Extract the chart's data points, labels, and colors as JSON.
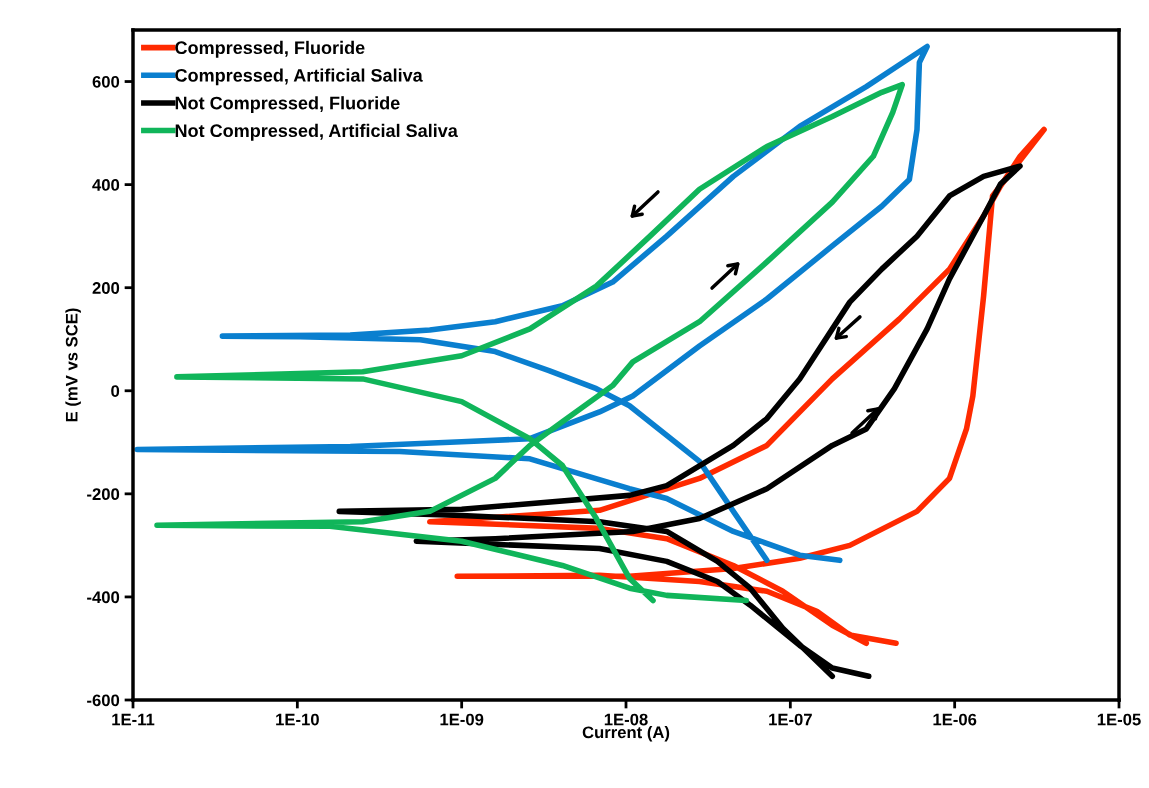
{
  "chart_data": {
    "type": "line",
    "xlabel": "Current (A)",
    "ylabel": "E (mV vs SCE)",
    "log": "x",
    "grid": false,
    "legend": "top left",
    "marker": "none",
    "line_style": "solid",
    "xlim": [
      1e-11,
      1e-05
    ],
    "ylim": [
      -600,
      700
    ],
    "xticks": [
      {
        "value": 1e-11,
        "label": "1E-11"
      },
      {
        "value": 1e-10,
        "label": "1E-10"
      },
      {
        "value": 1e-09,
        "label": "1E-09"
      },
      {
        "value": 1e-08,
        "label": "1E-08"
      },
      {
        "value": 1e-07,
        "label": "1E-07"
      },
      {
        "value": 1e-06,
        "label": "1E-06"
      },
      {
        "value": 1e-05,
        "label": "1E-05"
      }
    ],
    "yticks": [
      -600,
      -400,
      -200,
      0,
      200,
      400,
      600
    ],
    "series": [
      {
        "name": "Compressed, Fluoride",
        "color": "#ff2a00",
        "x": [
          2.9e-07,
          1.8e-07,
          9e-08,
          4.5e-08,
          1.77e-08,
          6.9e-09,
          6.4e-10,
          6.9e-09,
          2.8e-08,
          7.2e-08,
          1.8e-07,
          4.6e-07,
          9.3e-07,
          1.5e-06,
          1.9e-06,
          2.5e-06,
          3.5e-06,
          1.7e-06,
          1.5e-06,
          1.29e-06,
          1.18e-06,
          9.3e-07,
          5.9e-07,
          2.3e-07,
          1.14e-07,
          4.5e-08,
          1.05e-08,
          9.4e-10,
          6.9e-09,
          2.8e-08,
          7.2e-08,
          1.45e-07,
          2.3e-07,
          4.4e-07
        ],
        "values": [
          -490,
          -455,
          -389,
          -339,
          -287,
          -267,
          -254,
          -232,
          -170,
          -106,
          23,
          139,
          236,
          339,
          397,
          455,
          507,
          378,
          184,
          -10,
          -74,
          -170,
          -234,
          -300,
          -325,
          -345,
          -360,
          -360,
          -358,
          -370,
          -389,
          -428,
          -474,
          -490
        ]
      },
      {
        "name": "Compressed, Artificial Saliva",
        "color": "#0a7fcf",
        "x": [
          7.2e-08,
          4.5e-08,
          2.8e-08,
          1.05e-08,
          6.6e-09,
          3.4e-09,
          1.6e-09,
          5.6e-10,
          1.04e-10,
          3.5e-11,
          2.1e-10,
          6.4e-10,
          1.6e-09,
          4.1e-09,
          8.3e-09,
          1.77e-08,
          4.5e-08,
          1.14e-07,
          2.9e-07,
          6.8e-07,
          6.1e-07,
          5.9e-07,
          5.3e-07,
          3.6e-07,
          1.8e-07,
          7.2e-08,
          2.8e-08,
          1.1e-08,
          6.9e-09,
          2.6e-09,
          1e-09,
          2.1e-10,
          1.06e-11,
          4.2e-10,
          2.6e-09,
          1.05e-08,
          1.77e-08,
          4.5e-08,
          1.14e-07,
          2e-07
        ],
        "values": [
          -329,
          -234,
          -137,
          -29,
          4,
          39,
          76,
          99,
          105,
          106,
          108,
          118,
          134,
          165,
          211,
          300,
          416,
          513,
          590,
          668,
          637,
          507,
          410,
          358,
          281,
          178,
          87,
          -10,
          -41,
          -93,
          -99,
          -108,
          -114,
          -118,
          -132,
          -190,
          -209,
          -273,
          -319,
          -329
        ]
      },
      {
        "name": "Not Compressed, Fluoride",
        "color": "#000000",
        "x": [
          1.8e-07,
          9e-08,
          5.7e-08,
          3.6e-08,
          1.77e-08,
          6.9e-09,
          1e-09,
          1.8e-10,
          1e-09,
          1.05e-08,
          1.77e-08,
          4.5e-08,
          7.2e-08,
          1.14e-07,
          2.3e-07,
          3.6e-07,
          5.9e-07,
          9.3e-07,
          1.5e-06,
          2.5e-06,
          1.9e-06,
          1.5e-06,
          9.3e-07,
          6.8e-07,
          4.3e-07,
          2.9e-07,
          1.8e-07,
          7.2e-08,
          2.8e-08,
          1.1e-08,
          1.6e-09,
          5.3e-10,
          6.9e-09,
          1.77e-08,
          3.6e-08,
          5.7e-08,
          1.14e-07,
          1.8e-07,
          3e-07
        ],
        "values": [
          -554,
          -461,
          -383,
          -331,
          -273,
          -254,
          -242,
          -234,
          -230,
          -203,
          -184,
          -106,
          -54,
          23,
          172,
          236,
          300,
          378,
          416,
          436,
          401,
          339,
          217,
          120,
          4,
          -74,
          -106,
          -190,
          -248,
          -273,
          -287,
          -292,
          -306,
          -331,
          -370,
          -416,
          -494,
          -538,
          -554
        ]
      },
      {
        "name": "Not Compressed, Artificial Saliva",
        "color": "#10b55a",
        "x": [
          1.46e-08,
          1.05e-08,
          6.6e-09,
          4.1e-09,
          2.6e-09,
          1e-09,
          2.5e-10,
          1.85e-11,
          2.5e-10,
          1e-09,
          2.6e-09,
          6.6e-09,
          1.4e-08,
          2.8e-08,
          7.2e-08,
          1.8e-07,
          3.6e-07,
          4.8e-07,
          4.2e-07,
          3.2e-07,
          1.8e-07,
          7.2e-08,
          2.8e-08,
          1.1e-08,
          8.3e-09,
          4.1e-09,
          2.6e-09,
          1.6e-09,
          6.4e-10,
          2.5e-10,
          1.4e-11,
          1.58e-10,
          1e-09,
          4.1e-09,
          1.05e-08,
          1.77e-08,
          5.4e-08
        ],
        "values": [
          -407,
          -364,
          -248,
          -145,
          -93,
          -21,
          23,
          27,
          37,
          68,
          120,
          203,
          300,
          391,
          474,
          532,
          579,
          594,
          540,
          455,
          366,
          250,
          134,
          56,
          10,
          -60,
          -106,
          -170,
          -234,
          -254,
          -261,
          -263,
          -292,
          -339,
          -383,
          -397,
          -407
        ]
      }
    ]
  }
}
